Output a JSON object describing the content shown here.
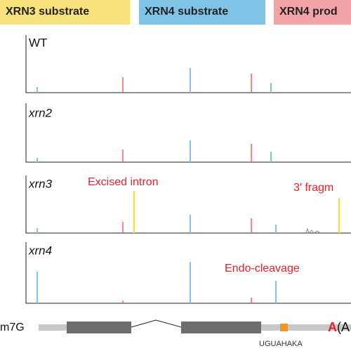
{
  "legend": [
    {
      "label": "XRN3 substrate",
      "color": "#f7e27c"
    },
    {
      "label": "XRN4 substrate",
      "color": "#7fc3e6"
    },
    {
      "label": "XRN4 prod",
      "color": "#f2a3a8"
    }
  ],
  "panels": [
    {
      "label": "WT"
    },
    {
      "label": "xrn2"
    },
    {
      "label": "xrn3"
    },
    {
      "label": "xrn4"
    }
  ],
  "annotations": [
    "Excised intron",
    "3′ fragm",
    "Endo-cleavage"
  ],
  "gene": {
    "cap": "m7G",
    "poly_a": "A",
    "poly_a_rest": "(A",
    "motif": "UGUAHAKA"
  }
}
